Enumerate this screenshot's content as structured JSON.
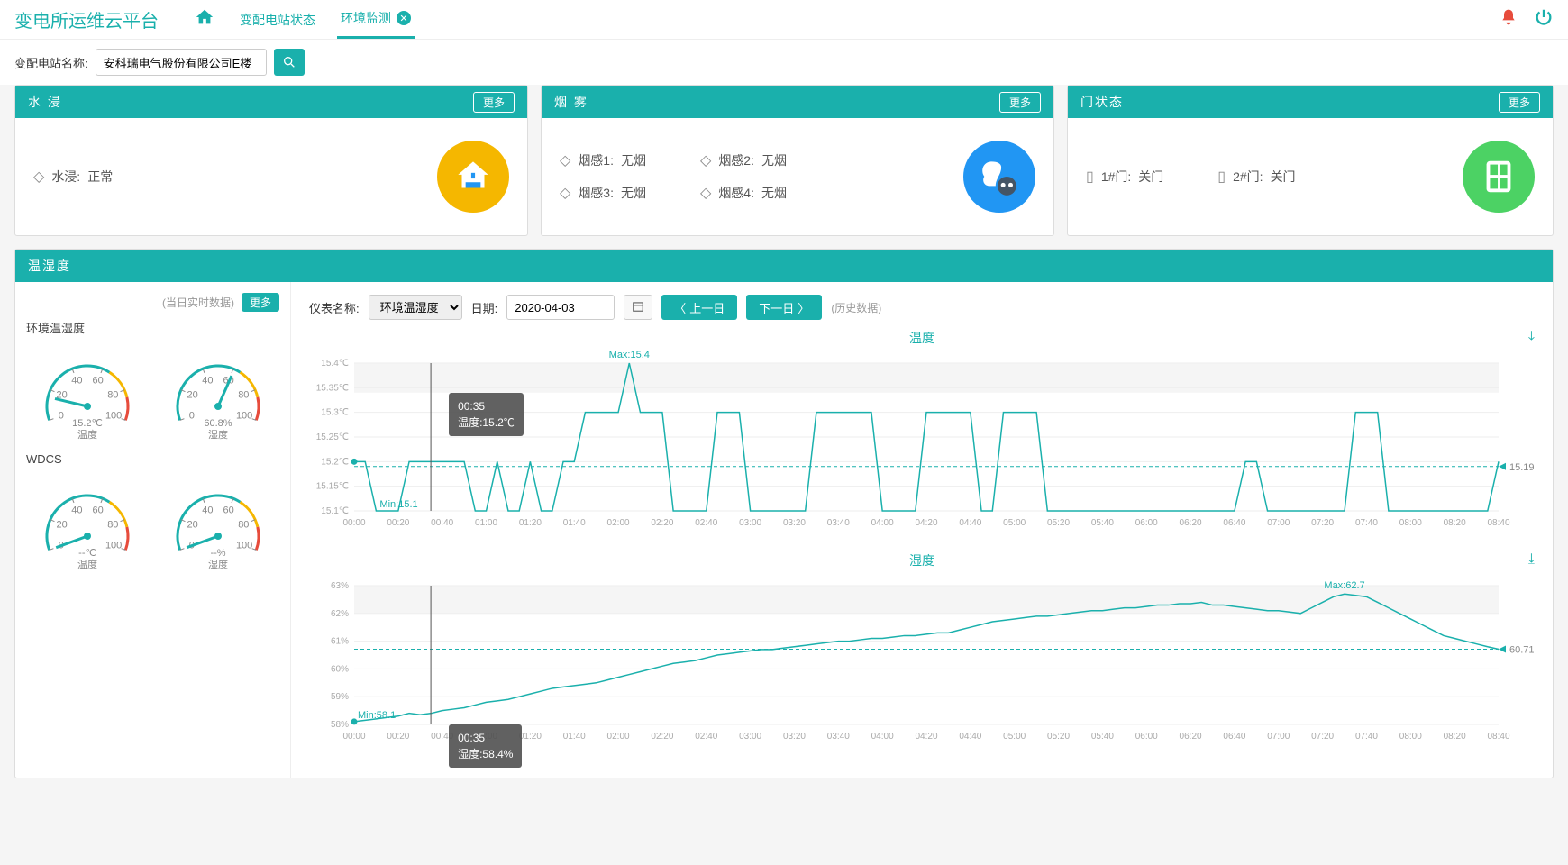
{
  "app_title": "变电所运维云平台",
  "tabs": [
    {
      "label": "变配电站状态",
      "closable": false
    },
    {
      "label": "环境监测",
      "closable": true,
      "active": true
    }
  ],
  "filter": {
    "label": "变配电站名称:",
    "value": "安科瑞电气股份有限公司E楼"
  },
  "cards": {
    "water": {
      "title": "水 浸",
      "more": "更多",
      "items": [
        {
          "label": "水浸:",
          "value": "正常"
        }
      ],
      "icon_bg": "#f5b700"
    },
    "smoke": {
      "title": "烟 雾",
      "more": "更多",
      "items": [
        {
          "label": "烟感1:",
          "value": "无烟"
        },
        {
          "label": "烟感2:",
          "value": "无烟"
        },
        {
          "label": "烟感3:",
          "value": "无烟"
        },
        {
          "label": "烟感4:",
          "value": "无烟"
        }
      ],
      "icon_bg": "#2196f3"
    },
    "door": {
      "title": "门状态",
      "more": "更多",
      "items": [
        {
          "label": "1#门:",
          "value": "关门"
        },
        {
          "label": "2#门:",
          "value": "关门"
        }
      ],
      "icon_bg": "#4cd264"
    }
  },
  "th_panel": {
    "title": "温湿度",
    "realtime_label": "(当日实时数据)",
    "more": "更多",
    "groups": [
      {
        "name": "环境温湿度",
        "gauges": [
          {
            "value": "15.2℃",
            "label": "温度",
            "pct": 0.152,
            "ticks": [
              "0",
              "20",
              "40",
              "60",
              "80",
              "100"
            ]
          },
          {
            "value": "60.8%",
            "label": "湿度",
            "pct": 0.608,
            "ticks": [
              "0",
              "20",
              "40",
              "60",
              "80",
              "100"
            ]
          }
        ]
      },
      {
        "name": "WDCS",
        "gauges": [
          {
            "value": "--℃",
            "label": "温度",
            "pct": 0,
            "ticks": [
              "0",
              "20",
              "40",
              "60",
              "80",
              "100"
            ]
          },
          {
            "value": "--%",
            "label": "湿度",
            "pct": 0,
            "ticks": [
              "0",
              "20",
              "40",
              "60",
              "80",
              "100"
            ]
          }
        ]
      }
    ],
    "controls": {
      "instrument_label": "仪表名称:",
      "instrument_value": "环境温湿度",
      "date_label": "日期:",
      "date_value": "2020-04-03",
      "prev": "上一日",
      "next": "下一日",
      "history": "(历史数据)"
    },
    "temp_chart": {
      "title": "温度",
      "color": "#1ab0ac",
      "grid_color": "#eee",
      "ylim": [
        15.1,
        15.4
      ],
      "yticks": [
        "15.1℃",
        "15.15℃",
        "15.2℃",
        "15.25℃",
        "15.3℃",
        "15.35℃",
        "15.4℃"
      ],
      "xticks": [
        "00:00",
        "00:20",
        "00:40",
        "01:00",
        "01:20",
        "01:40",
        "02:00",
        "02:20",
        "02:40",
        "03:00",
        "03:20",
        "03:40",
        "04:00",
        "04:20",
        "04:40",
        "05:00",
        "05:20",
        "05:40",
        "06:00",
        "06:20",
        "06:40",
        "07:00",
        "07:20",
        "07:40",
        "08:00",
        "08:20",
        "08:40"
      ],
      "max_label": "Max:15.4",
      "min_label": "Min:15.1",
      "end_label": "15.19",
      "baseline": 15.19,
      "cursor_x": 0.067,
      "tooltip_time": "00:35",
      "tooltip_text": "温度:15.2℃",
      "data": [
        15.2,
        15.2,
        15.1,
        15.1,
        15.1,
        15.2,
        15.2,
        15.2,
        15.2,
        15.2,
        15.2,
        15.1,
        15.1,
        15.2,
        15.1,
        15.1,
        15.2,
        15.1,
        15.1,
        15.2,
        15.2,
        15.3,
        15.3,
        15.3,
        15.3,
        15.4,
        15.3,
        15.3,
        15.3,
        15.1,
        15.1,
        15.1,
        15.1,
        15.3,
        15.3,
        15.3,
        15.1,
        15.1,
        15.1,
        15.1,
        15.1,
        15.1,
        15.3,
        15.3,
        15.3,
        15.3,
        15.3,
        15.3,
        15.1,
        15.1,
        15.1,
        15.1,
        15.3,
        15.3,
        15.3,
        15.3,
        15.3,
        15.1,
        15.1,
        15.3,
        15.3,
        15.3,
        15.3,
        15.1,
        15.1,
        15.1,
        15.1,
        15.1,
        15.1,
        15.1,
        15.1,
        15.1,
        15.1,
        15.1,
        15.1,
        15.1,
        15.1,
        15.1,
        15.1,
        15.1,
        15.1,
        15.2,
        15.2,
        15.1,
        15.1,
        15.1,
        15.1,
        15.1,
        15.1,
        15.1,
        15.1,
        15.3,
        15.3,
        15.3,
        15.1,
        15.1,
        15.1,
        15.1,
        15.1,
        15.1,
        15.1,
        15.1,
        15.1,
        15.1,
        15.2
      ]
    },
    "hum_chart": {
      "title": "湿度",
      "color": "#1ab0ac",
      "grid_color": "#eee",
      "ylim": [
        58,
        63
      ],
      "yticks": [
        "58%",
        "59%",
        "60%",
        "61%",
        "62%",
        "63%"
      ],
      "xticks": [
        "00:00",
        "00:20",
        "00:40",
        "01:00",
        "01:20",
        "01:40",
        "02:00",
        "02:20",
        "02:40",
        "03:00",
        "03:20",
        "03:40",
        "04:00",
        "04:20",
        "04:40",
        "05:00",
        "05:20",
        "05:40",
        "06:00",
        "06:20",
        "06:40",
        "07:00",
        "07:20",
        "07:40",
        "08:00",
        "08:20",
        "08:40"
      ],
      "max_label": "Max:62.7",
      "min_label": "Min:58.1",
      "end_label": "60.71",
      "baseline": 60.71,
      "cursor_x": 0.067,
      "tooltip_time": "00:35",
      "tooltip_text": "湿度:58.4%",
      "data": [
        58.1,
        58.15,
        58.2,
        58.25,
        58.3,
        58.4,
        58.35,
        58.4,
        58.5,
        58.55,
        58.6,
        58.7,
        58.8,
        58.85,
        58.9,
        59.0,
        59.1,
        59.2,
        59.3,
        59.35,
        59.4,
        59.45,
        59.5,
        59.6,
        59.7,
        59.8,
        59.9,
        60.0,
        60.1,
        60.2,
        60.25,
        60.3,
        60.4,
        60.5,
        60.55,
        60.6,
        60.65,
        60.7,
        60.7,
        60.75,
        60.8,
        60.85,
        60.9,
        60.95,
        61.0,
        61.0,
        61.05,
        61.1,
        61.1,
        61.15,
        61.2,
        61.2,
        61.25,
        61.3,
        61.3,
        61.4,
        61.5,
        61.6,
        61.7,
        61.75,
        61.8,
        61.85,
        61.9,
        61.9,
        61.95,
        62.0,
        62.05,
        62.1,
        62.1,
        62.15,
        62.2,
        62.2,
        62.25,
        62.3,
        62.3,
        62.35,
        62.35,
        62.4,
        62.3,
        62.3,
        62.25,
        62.2,
        62.15,
        62.1,
        62.1,
        62.05,
        62.0,
        62.2,
        62.4,
        62.6,
        62.7,
        62.65,
        62.6,
        62.4,
        62.2,
        62.0,
        61.8,
        61.6,
        61.4,
        61.2,
        61.1,
        61.0,
        60.9,
        60.8,
        60.71
      ]
    }
  },
  "colors": {
    "primary": "#1ab0ac",
    "danger": "#e74c3c"
  }
}
